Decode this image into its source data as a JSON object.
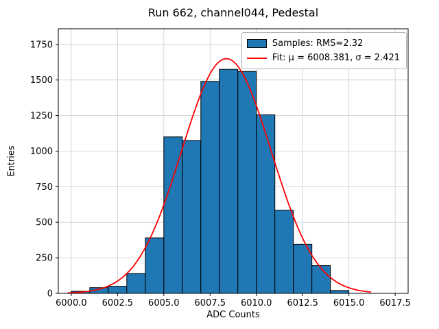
{
  "figure": {
    "background": "#ffffff"
  },
  "chart_data": {
    "type": "bar",
    "chart_kind": "histogram-with-gaussian-fit",
    "title": "Run 662, channel044, Pedestal",
    "xlabel": "ADC Counts",
    "ylabel": "Entries",
    "xlim": [
      5999.3,
      6018.2
    ],
    "ylim": [
      0,
      1860
    ],
    "xticks": [
      6000.0,
      6002.5,
      6005.0,
      6007.5,
      6010.0,
      6012.5,
      6015.0,
      6017.5
    ],
    "xtick_labels": [
      "6000.0",
      "6002.5",
      "6005.0",
      "6007.5",
      "6010.0",
      "6012.5",
      "6015.0",
      "6017.5"
    ],
    "yticks": [
      0,
      250,
      500,
      750,
      1000,
      1250,
      1500,
      1750
    ],
    "ytick_labels": [
      "0",
      "250",
      "500",
      "750",
      "1000",
      "1250",
      "1500",
      "1750"
    ],
    "grid": true,
    "grid_color": "#cccccc",
    "axes_color": "#000000",
    "bin_edges": [
      6000,
      6001,
      6002,
      6003,
      6004,
      6005,
      6006,
      6007,
      6008,
      6009,
      6010,
      6011,
      6012,
      6013,
      6014,
      6015
    ],
    "counts": [
      15,
      40,
      50,
      140,
      390,
      1100,
      1075,
      1490,
      1575,
      1560,
      1255,
      585,
      345,
      195,
      20
    ],
    "bar_color": "#1f77b4",
    "bar_edge_color": "#000000",
    "fit": {
      "mu": 6008.381,
      "sigma": 2.421,
      "amplitude": 1650,
      "x_start": 5999.8,
      "x_end": 6016.2
    },
    "fit_color": "#ff0000",
    "legend": {
      "position": "upper right",
      "entries": [
        {
          "label": "Samples: RMS=2.32",
          "marker": "patch",
          "color": "#1f77b4"
        },
        {
          "label": "Fit: μ = 6008.381, σ = 2.421",
          "marker": "line",
          "color": "#ff0000"
        }
      ]
    }
  }
}
